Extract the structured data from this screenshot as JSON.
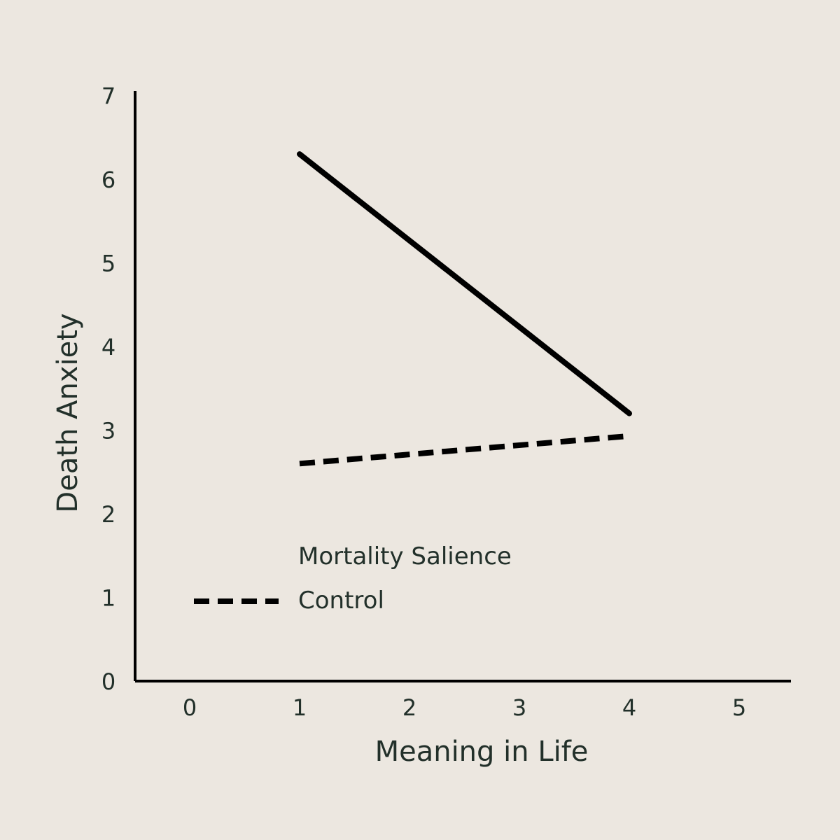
{
  "colors": {
    "background": "#ece7e0",
    "ink": "#000000",
    "text": "#22302a"
  },
  "chart_data": {
    "type": "line",
    "xlabel": "Meaning in Life",
    "ylabel": "Death Anxiety",
    "xlim": [
      -0.5,
      5.5
    ],
    "ylim": [
      0,
      7
    ],
    "xticks": [
      0,
      1,
      2,
      3,
      4,
      5
    ],
    "yticks": [
      0,
      1,
      2,
      3,
      4,
      5,
      6,
      7
    ],
    "grid": false,
    "legend_position": "bottom-left",
    "series": [
      {
        "name": "Mortality Salience",
        "style": "solid",
        "x": [
          1,
          4
        ],
        "y": [
          6.3,
          3.2
        ]
      },
      {
        "name": "Control",
        "style": "dashed",
        "x": [
          1,
          4
        ],
        "y": [
          2.6,
          2.93
        ]
      }
    ]
  }
}
